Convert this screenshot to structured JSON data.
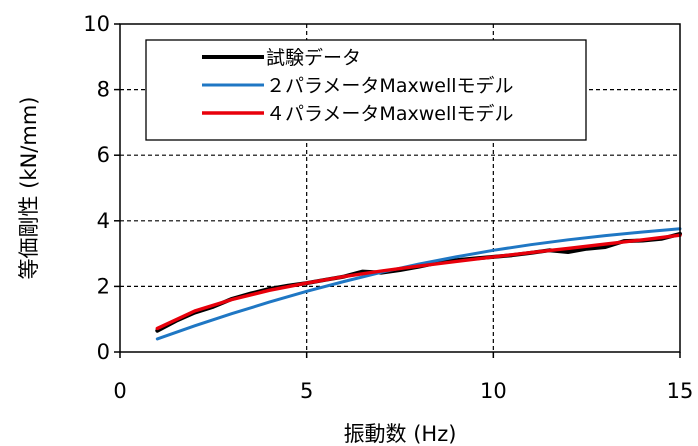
{
  "chart_data": {
    "type": "line",
    "title": "",
    "xlabel": "振動数 (Hz)",
    "ylabel": "等価剛性 (kN/mm)",
    "xlim": [
      0,
      15
    ],
    "ylim": [
      0,
      10
    ],
    "xticks": [
      "0",
      "5",
      "10",
      "15"
    ],
    "yticks": [
      "0",
      "2",
      "4",
      "6",
      "8",
      "10"
    ],
    "grid": "dashed, major ticks",
    "legend_position": "top-left",
    "series": [
      {
        "name": "試験データ",
        "color": "#000000",
        "x": [
          1,
          1.5,
          2,
          2.5,
          3,
          3.5,
          4,
          4.5,
          5,
          5.5,
          6,
          6.5,
          7,
          7.5,
          8,
          8.5,
          9,
          9.5,
          10,
          10.5,
          11,
          11.5,
          12,
          12.5,
          13,
          13.5,
          14,
          14.5,
          15
        ],
        "y": [
          0.65,
          0.95,
          1.2,
          1.38,
          1.62,
          1.78,
          1.92,
          2.02,
          2.1,
          2.2,
          2.3,
          2.45,
          2.42,
          2.5,
          2.6,
          2.72,
          2.8,
          2.85,
          2.9,
          2.95,
          3.02,
          3.1,
          3.05,
          3.15,
          3.2,
          3.38,
          3.4,
          3.45,
          3.6
        ]
      },
      {
        "name": "２パラメータMaxwellモデル",
        "color": "#1f77c4",
        "x": [
          1,
          2,
          3,
          4,
          5,
          6,
          7,
          8,
          9,
          10,
          11,
          12,
          13,
          14,
          15
        ],
        "y": [
          0.4,
          0.8,
          1.17,
          1.52,
          1.85,
          2.15,
          2.43,
          2.68,
          2.9,
          3.1,
          3.27,
          3.42,
          3.55,
          3.66,
          3.76
        ]
      },
      {
        "name": "４パラメータMaxwellモデル",
        "color": "#e8000b",
        "x": [
          1,
          2,
          3,
          4,
          5,
          6,
          7,
          8,
          9,
          10,
          11,
          12,
          13,
          14,
          15
        ],
        "y": [
          0.72,
          1.25,
          1.6,
          1.88,
          2.1,
          2.3,
          2.47,
          2.62,
          2.76,
          2.9,
          3.03,
          3.16,
          3.29,
          3.42,
          3.56
        ]
      }
    ]
  }
}
